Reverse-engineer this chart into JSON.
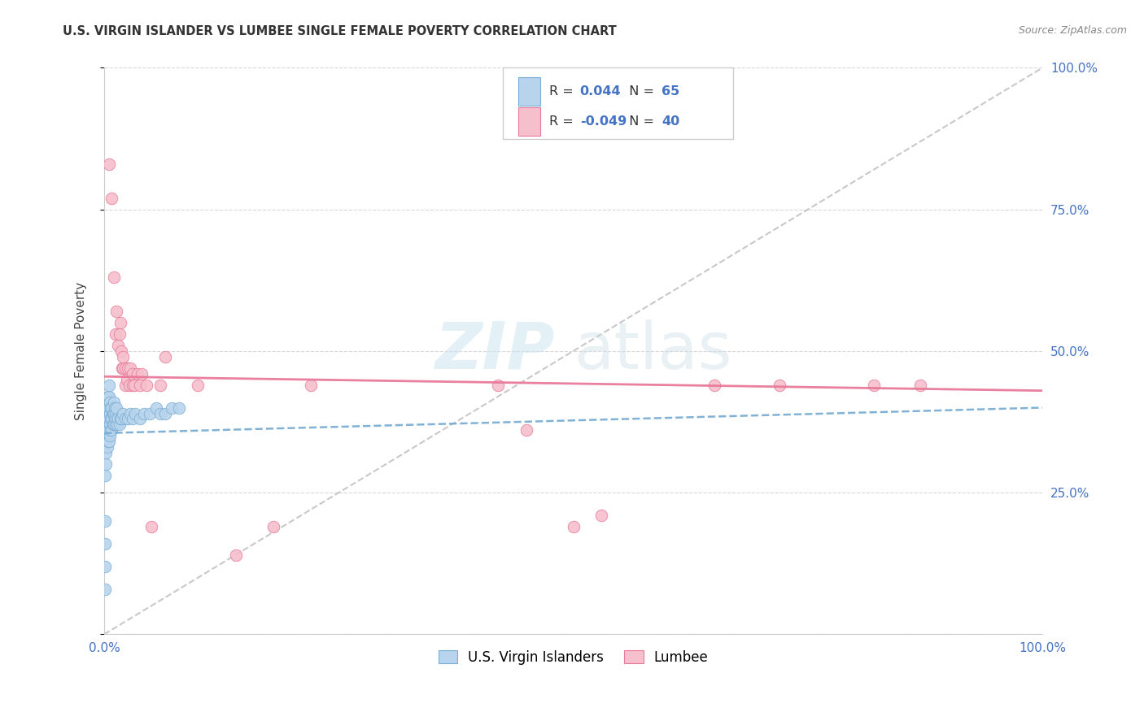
{
  "title": "U.S. VIRGIN ISLANDER VS LUMBEE SINGLE FEMALE POVERTY CORRELATION CHART",
  "source": "Source: ZipAtlas.com",
  "ylabel": "Single Female Poverty",
  "legend_label1": "U.S. Virgin Islanders",
  "legend_label2": "Lumbee",
  "R1": 0.044,
  "N1": 65,
  "R2": -0.049,
  "N2": 40,
  "color_blue": "#b8d4ed",
  "color_blue_edge": "#7aaed4",
  "color_blue_trend": "#7aaed4",
  "color_pink": "#f5bfcc",
  "color_pink_edge": "#e8799a",
  "color_pink_trend": "#e8799a",
  "color_diag_line": "#bbbbbb",
  "watermark_zip": "ZIP",
  "watermark_atlas": "atlas",
  "blue_x": [
    0.001,
    0.001,
    0.001,
    0.001,
    0.001,
    0.002,
    0.002,
    0.002,
    0.002,
    0.003,
    0.003,
    0.003,
    0.003,
    0.003,
    0.004,
    0.004,
    0.004,
    0.004,
    0.004,
    0.005,
    0.005,
    0.005,
    0.005,
    0.005,
    0.005,
    0.006,
    0.006,
    0.006,
    0.006,
    0.007,
    0.007,
    0.007,
    0.008,
    0.008,
    0.008,
    0.009,
    0.009,
    0.01,
    0.01,
    0.01,
    0.011,
    0.011,
    0.012,
    0.012,
    0.013,
    0.013,
    0.014,
    0.015,
    0.016,
    0.017,
    0.018,
    0.02,
    0.022,
    0.025,
    0.028,
    0.03,
    0.033,
    0.038,
    0.042,
    0.048,
    0.055,
    0.06,
    0.065,
    0.072,
    0.08
  ],
  "blue_y": [
    0.08,
    0.12,
    0.16,
    0.2,
    0.28,
    0.3,
    0.32,
    0.34,
    0.38,
    0.33,
    0.35,
    0.37,
    0.39,
    0.41,
    0.34,
    0.36,
    0.38,
    0.4,
    0.42,
    0.34,
    0.36,
    0.38,
    0.4,
    0.42,
    0.44,
    0.35,
    0.37,
    0.39,
    0.41,
    0.36,
    0.38,
    0.4,
    0.36,
    0.38,
    0.4,
    0.37,
    0.39,
    0.37,
    0.39,
    0.41,
    0.38,
    0.4,
    0.37,
    0.39,
    0.38,
    0.4,
    0.37,
    0.38,
    0.37,
    0.38,
    0.38,
    0.39,
    0.38,
    0.38,
    0.39,
    0.38,
    0.39,
    0.38,
    0.39,
    0.39,
    0.4,
    0.39,
    0.39,
    0.4,
    0.4
  ],
  "pink_x": [
    0.005,
    0.008,
    0.01,
    0.012,
    0.013,
    0.015,
    0.016,
    0.017,
    0.018,
    0.019,
    0.02,
    0.02,
    0.022,
    0.022,
    0.024,
    0.025,
    0.027,
    0.028,
    0.03,
    0.03,
    0.032,
    0.035,
    0.038,
    0.04,
    0.045,
    0.05,
    0.06,
    0.065,
    0.1,
    0.14,
    0.18,
    0.22,
    0.42,
    0.45,
    0.5,
    0.53,
    0.65,
    0.72,
    0.82,
    0.87
  ],
  "pink_y": [
    0.83,
    0.77,
    0.63,
    0.53,
    0.57,
    0.51,
    0.53,
    0.55,
    0.5,
    0.47,
    0.47,
    0.49,
    0.44,
    0.47,
    0.45,
    0.47,
    0.44,
    0.47,
    0.44,
    0.46,
    0.44,
    0.46,
    0.44,
    0.46,
    0.44,
    0.19,
    0.44,
    0.49,
    0.44,
    0.14,
    0.19,
    0.44,
    0.44,
    0.36,
    0.19,
    0.21,
    0.44,
    0.44,
    0.44,
    0.44
  ],
  "blue_trend_x": [
    0.0,
    1.0
  ],
  "blue_trend_y": [
    0.355,
    0.4
  ],
  "pink_trend_x": [
    0.0,
    1.0
  ],
  "pink_trend_y": [
    0.455,
    0.43
  ],
  "xlim": [
    0.0,
    1.0
  ],
  "ylim": [
    0.0,
    1.0
  ],
  "xtick_positions": [
    0.0,
    0.25,
    0.5,
    0.75,
    1.0
  ],
  "ytick_positions": [
    0.0,
    0.25,
    0.5,
    0.75,
    1.0
  ],
  "ytick_labels": [
    "",
    "25.0%",
    "50.0%",
    "75.0%",
    "100.0%"
  ]
}
